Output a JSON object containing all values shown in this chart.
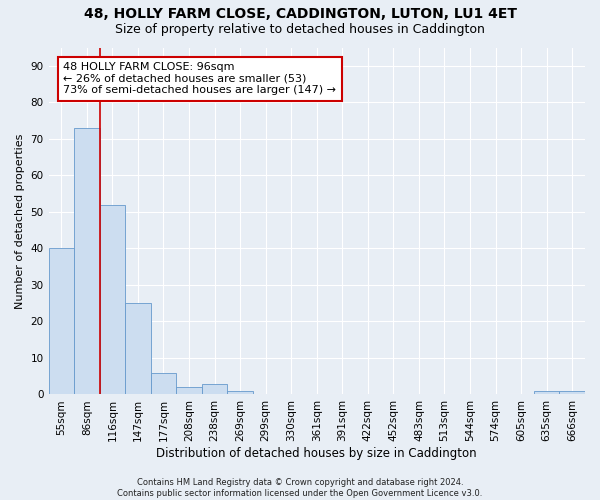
{
  "title1": "48, HOLLY FARM CLOSE, CADDINGTON, LUTON, LU1 4ET",
  "title2": "Size of property relative to detached houses in Caddington",
  "xlabel": "Distribution of detached houses by size in Caddington",
  "ylabel": "Number of detached properties",
  "categories": [
    "55sqm",
    "86sqm",
    "116sqm",
    "147sqm",
    "177sqm",
    "208sqm",
    "238sqm",
    "269sqm",
    "299sqm",
    "330sqm",
    "361sqm",
    "391sqm",
    "422sqm",
    "452sqm",
    "483sqm",
    "513sqm",
    "544sqm",
    "574sqm",
    "605sqm",
    "635sqm",
    "666sqm"
  ],
  "values": [
    40,
    73,
    52,
    25,
    6,
    2,
    3,
    1,
    0,
    0,
    0,
    0,
    0,
    0,
    0,
    0,
    0,
    0,
    0,
    1,
    1
  ],
  "bar_color": "#ccddf0",
  "bar_edge_color": "#6699cc",
  "vline_x": 1.5,
  "vline_color": "#cc0000",
  "annotation_line1": "48 HOLLY FARM CLOSE: 96sqm",
  "annotation_line2": "← 26% of detached houses are smaller (53)",
  "annotation_line3": "73% of semi-detached houses are larger (147) →",
  "annotation_box_color": "#ffffff",
  "annotation_box_edge": "#cc0000",
  "ylim": [
    0,
    95
  ],
  "yticks": [
    0,
    10,
    20,
    30,
    40,
    50,
    60,
    70,
    80,
    90
  ],
  "footer": "Contains HM Land Registry data © Crown copyright and database right 2024.\nContains public sector information licensed under the Open Government Licence v3.0.",
  "bg_color": "#e8eef5",
  "grid_color": "#ffffff",
  "title1_fontsize": 10,
  "title2_fontsize": 9,
  "xlabel_fontsize": 8.5,
  "ylabel_fontsize": 8,
  "tick_fontsize": 7.5,
  "annot_fontsize": 8,
  "footer_fontsize": 6
}
